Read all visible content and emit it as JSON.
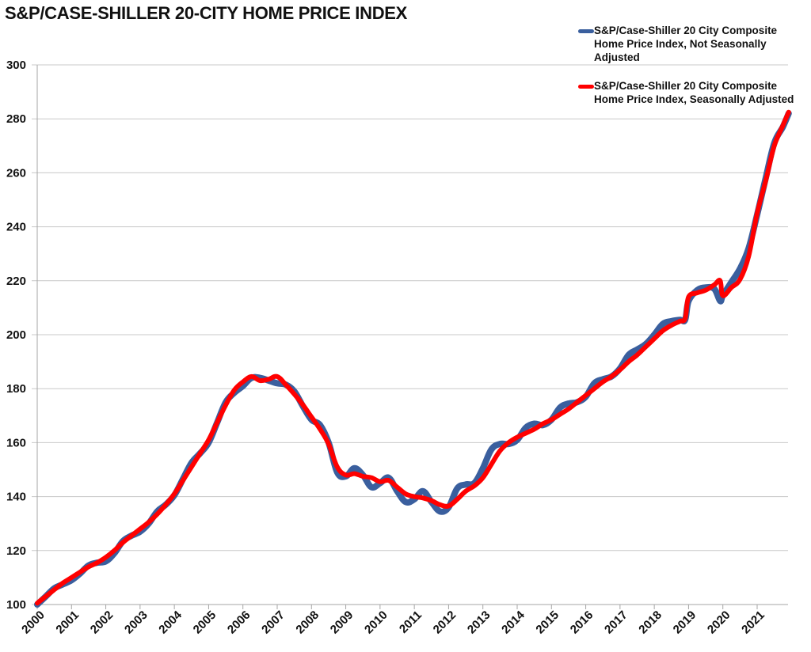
{
  "chart_data": {
    "type": "line",
    "title": "S&P/CASE-SHILLER 20-CITY HOME PRICE INDEX",
    "xlabel": "",
    "ylabel": "",
    "ylim": [
      100,
      300
    ],
    "xlim": [
      2000,
      2022
    ],
    "yticks": [
      "100",
      "120",
      "140",
      "160",
      "180",
      "200",
      "220",
      "240",
      "260",
      "280",
      "300"
    ],
    "xticks": [
      "2000",
      "2001",
      "2002",
      "2003",
      "2004",
      "2005",
      "2006",
      "2007",
      "2008",
      "2009",
      "2010",
      "2011",
      "2012",
      "2013",
      "2014",
      "2015",
      "2016",
      "2017",
      "2018",
      "2019",
      "2020",
      "2021"
    ],
    "grid": "horizontal",
    "legend_position": "top-right",
    "x": [
      2000.0,
      2000.25,
      2000.5,
      2000.75,
      2001.0,
      2001.25,
      2001.5,
      2001.75,
      2002.0,
      2002.25,
      2002.5,
      2002.75,
      2003.0,
      2003.25,
      2003.5,
      2003.75,
      2004.0,
      2004.25,
      2004.5,
      2004.75,
      2005.0,
      2005.25,
      2005.5,
      2005.75,
      2006.0,
      2006.25,
      2006.5,
      2006.75,
      2007.0,
      2007.25,
      2007.5,
      2007.75,
      2008.0,
      2008.25,
      2008.5,
      2008.75,
      2009.0,
      2009.25,
      2009.5,
      2009.75,
      2010.0,
      2010.25,
      2010.5,
      2010.75,
      2011.0,
      2011.25,
      2011.5,
      2011.75,
      2012.0,
      2012.25,
      2012.5,
      2012.75,
      2013.0,
      2013.25,
      2013.5,
      2013.75,
      2014.0,
      2014.25,
      2014.5,
      2014.75,
      2015.0,
      2015.25,
      2015.5,
      2015.75,
      2016.0,
      2016.25,
      2016.5,
      2016.75,
      2017.0,
      2017.25,
      2017.5,
      2017.75,
      2018.0,
      2018.25,
      2018.5,
      2018.75,
      2018.9,
      2019.0,
      2019.25,
      2019.5,
      2019.75,
      2019.92,
      2020.0,
      2020.25,
      2020.5,
      2020.75,
      2021.0,
      2021.25,
      2021.5,
      2021.75,
      2021.92
    ],
    "series": [
      {
        "name": "S&P/Case-Shiller 20 City Composite Home Price Index, Not Seasonally Adjusted",
        "color": "#3A5F9E",
        "values": [
          100.0,
          103.0,
          106.0,
          107.5,
          109.0,
          111.5,
          114.5,
          115.5,
          116.0,
          119.0,
          123.5,
          125.5,
          127.0,
          130.0,
          134.5,
          137.0,
          140.5,
          146.5,
          152.5,
          156.0,
          160.0,
          167.5,
          175.0,
          178.5,
          181.0,
          184.0,
          184.0,
          183.0,
          182.0,
          181.5,
          179.0,
          173.5,
          168.5,
          166.5,
          160.0,
          149.0,
          147.5,
          150.5,
          148.0,
          143.5,
          145.0,
          147.0,
          142.0,
          138.0,
          139.0,
          142.0,
          138.0,
          134.5,
          136.0,
          143.0,
          144.5,
          145.0,
          150.5,
          157.5,
          159.5,
          159.5,
          161.0,
          165.5,
          167.0,
          166.5,
          168.5,
          173.0,
          174.5,
          175.0,
          177.0,
          182.0,
          183.5,
          184.5,
          187.5,
          192.5,
          194.5,
          196.5,
          200.0,
          204.0,
          205.0,
          205.5,
          205.5,
          212.5,
          216.5,
          217.5,
          217.0,
          212.5,
          214.5,
          219.5,
          224.5,
          232.0,
          244.5,
          258.0,
          271.0,
          277.0,
          282.0
        ]
      },
      {
        "name": "S&P/Case-Shiller 20 City Composite Home Price Index, Seasonally Adjusted",
        "color": "#FF0000",
        "values": [
          100.5,
          103.0,
          105.5,
          108.0,
          110.0,
          112.0,
          114.0,
          115.5,
          117.5,
          120.0,
          123.0,
          125.5,
          128.0,
          130.5,
          133.5,
          137.0,
          141.0,
          146.0,
          151.0,
          156.0,
          161.0,
          167.5,
          174.0,
          179.5,
          182.5,
          184.5,
          183.0,
          183.5,
          184.5,
          181.5,
          178.0,
          174.0,
          169.5,
          165.0,
          159.5,
          151.0,
          148.0,
          148.5,
          147.5,
          147.0,
          145.5,
          146.0,
          143.5,
          141.0,
          140.0,
          139.5,
          138.5,
          137.0,
          136.5,
          139.0,
          142.0,
          144.0,
          147.0,
          152.0,
          157.0,
          160.0,
          162.0,
          163.5,
          165.0,
          167.0,
          168.5,
          170.5,
          172.5,
          175.0,
          177.5,
          180.0,
          182.5,
          184.5,
          187.0,
          190.0,
          192.5,
          195.5,
          198.5,
          201.5,
          203.5,
          205.0,
          206.0,
          214.0,
          215.5,
          216.5,
          218.5,
          220.0,
          214.5,
          217.5,
          220.5,
          229.0,
          245.0,
          257.0,
          270.0,
          277.5,
          282.5
        ]
      }
    ]
  }
}
